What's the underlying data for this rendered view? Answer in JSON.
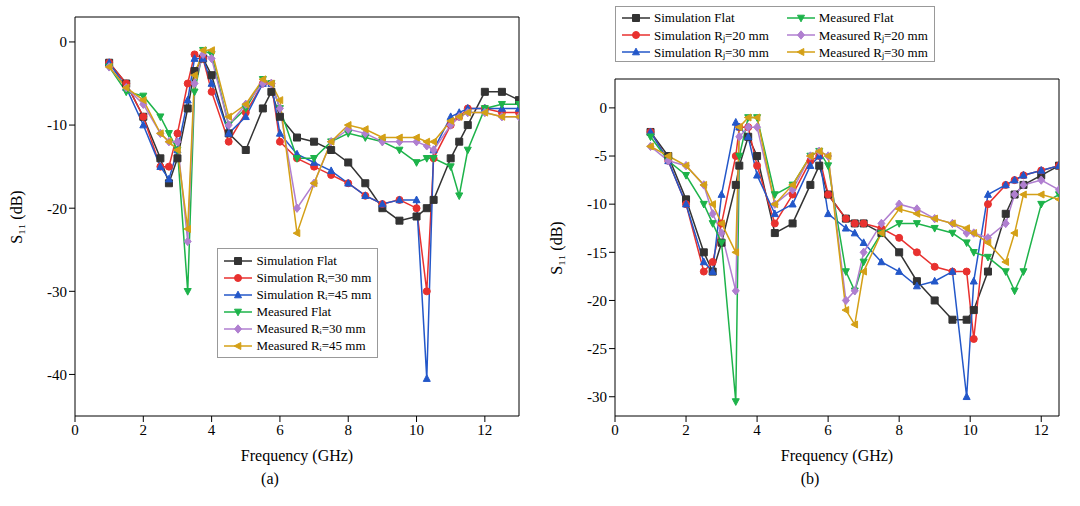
{
  "chart_data": [
    {
      "type": "line",
      "title": "(a)",
      "x_label": "Frequency (GHz)",
      "y_label": "S₁₁ (dB)",
      "x": [
        1,
        1.5,
        2,
        2.5,
        2.75,
        3,
        3.3,
        3.5,
        3.75,
        4,
        4.5,
        5,
        5.5,
        5.75,
        6,
        6.5,
        7,
        7.5,
        8,
        8.5,
        9,
        9.5,
        10,
        10.3,
        10.5,
        11,
        11.25,
        11.5,
        12,
        12.5,
        13
      ],
      "series": [
        {
          "name": "Simulation Flat",
          "color": "#333333",
          "marker": "square",
          "values": [
            -2.5,
            -5,
            -9,
            -14,
            -17,
            -14,
            -8,
            -3.5,
            -2,
            -4,
            -11,
            -13,
            -8,
            -6,
            -9,
            -11.5,
            -12,
            -13,
            -14.5,
            -17,
            -20,
            -21.5,
            -21,
            -20,
            -19,
            -14,
            -12,
            -10,
            -6,
            -6,
            -7
          ]
        },
        {
          "name": "Simulation Rᵢ=30 mm",
          "color": "#e8312f",
          "marker": "circle",
          "values": [
            -2.5,
            -5,
            -9,
            -15,
            -15,
            -11,
            -5,
            -1.5,
            -2,
            -6,
            -12,
            -8.5,
            -5,
            -5,
            -12,
            -14,
            -15,
            -16,
            -17,
            -18.5,
            -19.5,
            -19,
            -20,
            -30,
            -14,
            -10,
            -9,
            -8,
            -8,
            -8.5,
            -8.5
          ]
        },
        {
          "name": "Simulation Rᵢ=45 mm",
          "color": "#2357c9",
          "marker": "triangle-up",
          "values": [
            -2.5,
            -5.5,
            -10,
            -15,
            -16.5,
            -13,
            -7,
            -2,
            -2,
            -5,
            -11,
            -9,
            -5,
            -5,
            -11,
            -13.5,
            -14.5,
            -15.5,
            -17,
            -18.5,
            -19.5,
            -19,
            -19,
            -40.5,
            -13,
            -9,
            -8.5,
            -8,
            -8,
            -8,
            -8
          ]
        },
        {
          "name": "Measured Flat",
          "color": "#1db34a",
          "marker": "triangle-down",
          "values": [
            -3,
            -6,
            -6.5,
            -9,
            -11,
            -13,
            -30,
            -6,
            -1,
            -1.5,
            -10,
            -8,
            -4.5,
            -5,
            -8,
            -14,
            -14,
            -12,
            -11,
            -11.5,
            -12,
            -13,
            -14.5,
            -14,
            -14,
            -15,
            -18.5,
            -13,
            -8,
            -7.5,
            -7.5
          ]
        },
        {
          "name": "Measured Rᵢ=30 mm",
          "color": "#b07fd0",
          "marker": "diamond",
          "values": [
            -3,
            -5.5,
            -7.5,
            -11,
            -12,
            -12,
            -24,
            -5,
            -1.5,
            -2,
            -10,
            -7.5,
            -5,
            -5,
            -8,
            -20,
            -17,
            -12,
            -10.5,
            -11,
            -12,
            -12,
            -12,
            -12.5,
            -13,
            -10,
            -9,
            -8.5,
            -8.5,
            -9,
            -9
          ]
        },
        {
          "name": "Measured Rᵢ=45 mm",
          "color": "#d4a017",
          "marker": "triangle-left",
          "values": [
            -3,
            -5.5,
            -7,
            -11,
            -12,
            -13,
            -22.5,
            -4,
            -1,
            -1,
            -9,
            -7.5,
            -4.5,
            -5,
            -7,
            -23,
            -17,
            -12,
            -10,
            -10.5,
            -11.5,
            -11.5,
            -11.5,
            -12,
            -12,
            -9.5,
            -9,
            -8.5,
            -8.5,
            -9,
            -9
          ]
        }
      ],
      "xlim": [
        0,
        13
      ],
      "ylim": [
        -45,
        3
      ],
      "xticks": [
        0,
        2,
        4,
        6,
        8,
        10,
        12
      ],
      "yticks": [
        -40,
        -30,
        -20,
        -10,
        0
      ],
      "legend": "lower center"
    },
    {
      "type": "line",
      "title": "(b)",
      "x_label": "Frequency (GHz)",
      "y_label": "S₁₁ (dB)",
      "x": [
        1,
        1.5,
        2,
        2.5,
        2.75,
        3,
        3.4,
        3.5,
        3.75,
        4,
        4.5,
        5,
        5.5,
        5.75,
        6,
        6.5,
        6.75,
        7,
        7.5,
        8,
        8.5,
        9,
        9.5,
        9.9,
        10.1,
        10.5,
        11,
        11.25,
        11.5,
        12,
        12.5
      ],
      "series": [
        {
          "name": "Simulation Flat",
          "color": "#333333",
          "marker": "square",
          "values": [
            -2.5,
            -5,
            -9.5,
            -15,
            -17,
            -14,
            -8,
            -6,
            -3,
            -5,
            -13,
            -12,
            -8,
            -6,
            -9,
            -11.5,
            -12,
            -12,
            -13,
            -15,
            -18,
            -20,
            -22,
            -22,
            -21,
            -17,
            -11,
            -9,
            -8,
            -7,
            -6
          ]
        },
        {
          "name": "Simulation Rⱼ=20 mm",
          "color": "#e8312f",
          "marker": "circle",
          "values": [
            -2.5,
            -5.5,
            -10,
            -17,
            -16,
            -12,
            -5,
            -2,
            -2,
            -6,
            -12,
            -9,
            -5.5,
            -5,
            -9,
            -11.5,
            -12,
            -12,
            -12.5,
            -13.5,
            -15,
            -16.5,
            -17,
            -17,
            -24,
            -10,
            -8,
            -7.5,
            -7,
            -6.5,
            -6
          ]
        },
        {
          "name": "Simulation Rⱼ=30 mm",
          "color": "#2357c9",
          "marker": "triangle-up",
          "values": [
            -2.5,
            -5.5,
            -10,
            -16,
            -17,
            -9,
            -1.5,
            -2,
            -3,
            -7,
            -11,
            -10,
            -6,
            -5,
            -11,
            -12.5,
            -13,
            -14,
            -16,
            -17,
            -18.5,
            -18,
            -17,
            -30,
            -18,
            -9,
            -8,
            -7.5,
            -7,
            -6.5,
            -6
          ]
        },
        {
          "name": "Measured Flat",
          "color": "#1db34a",
          "marker": "triangle-down",
          "values": [
            -3,
            -5.5,
            -7,
            -10,
            -12,
            -14,
            -30.5,
            -5,
            -1,
            -1,
            -9,
            -8,
            -5,
            -4.5,
            -6,
            -17,
            -19,
            -16,
            -13,
            -12,
            -12,
            -12.5,
            -13,
            -14,
            -15,
            -15.5,
            -17,
            -19,
            -17,
            -10,
            -9
          ]
        },
        {
          "name": "Measured Rⱼ=20 mm",
          "color": "#b07fd0",
          "marker": "diamond",
          "values": [
            -4,
            -5.5,
            -6,
            -8,
            -11,
            -13,
            -19,
            -3,
            -2,
            -2,
            -10,
            -8.5,
            -5,
            -4.5,
            -5,
            -20,
            -19,
            -15,
            -12,
            -10,
            -10.5,
            -11.5,
            -12,
            -13,
            -13,
            -13.5,
            -12,
            -9,
            -8,
            -7.5,
            -8.5
          ]
        },
        {
          "name": "Measured Rⱼ=30 mm",
          "color": "#d4a017",
          "marker": "triangle-left",
          "values": [
            -4,
            -5,
            -6,
            -8,
            -10,
            -12,
            -15,
            -2,
            -1,
            -1,
            -10,
            -8,
            -5,
            -4.5,
            -5,
            -21,
            -22.5,
            -17,
            -13,
            -10.5,
            -11,
            -11.5,
            -12,
            -12.5,
            -13,
            -14,
            -16,
            -13,
            -9,
            -9,
            -9.5
          ]
        }
      ],
      "xlim": [
        0,
        12.5
      ],
      "ylim": [
        -32,
        3
      ],
      "xticks": [
        0,
        2,
        4,
        6,
        8,
        10,
        12
      ],
      "yticks": [
        -30,
        -25,
        -20,
        -15,
        -10,
        -5,
        0
      ],
      "legend": "top"
    }
  ]
}
